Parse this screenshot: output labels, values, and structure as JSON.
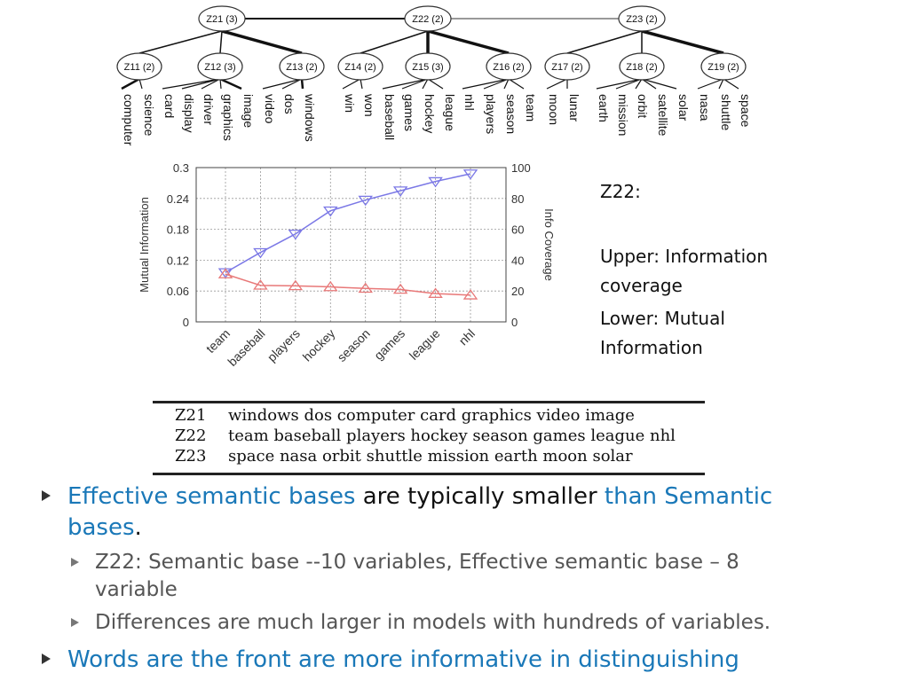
{
  "tree": {
    "top_nodes": [
      "Z21 (3)",
      "Z22 (2)",
      "Z23 (2)"
    ],
    "mid_nodes": [
      "Z11 (2)",
      "Z12 (3)",
      "Z13 (2)",
      "Z14 (2)",
      "Z15 (3)",
      "Z16 (2)",
      "Z17 (2)",
      "Z18 (2)",
      "Z19 (2)"
    ],
    "leaf_groups": [
      [
        "computer",
        "science"
      ],
      [
        "card",
        "display",
        "driver",
        "graphics",
        "image"
      ],
      [
        "video",
        "dos",
        "windows"
      ],
      [
        "win",
        "won"
      ],
      [
        "baseball",
        "games",
        "hockey",
        "league"
      ],
      [
        "nhl",
        "players",
        "season",
        "team"
      ],
      [
        "moon",
        "lunar"
      ],
      [
        "earth",
        "mission",
        "orbit",
        "satellite",
        "solar"
      ],
      [
        "nasa",
        "shuttle",
        "space"
      ]
    ]
  },
  "chart_data": {
    "type": "line",
    "categories": [
      "team",
      "baseball",
      "players",
      "hockey",
      "season",
      "games",
      "league",
      "nhl"
    ],
    "series": [
      {
        "values": [
          32,
          45,
          57,
          72,
          79,
          85,
          91,
          96
        ],
        "color": "#7b78e6",
        "marker": "triangle-down",
        "axis": "right"
      },
      {
        "values": [
          0.093,
          0.071,
          0.07,
          0.068,
          0.065,
          0.063,
          0.055,
          0.052
        ],
        "color": "#e87878",
        "marker": "triangle-up",
        "axis": "left"
      }
    ],
    "ylabel_left": "Mutual Information",
    "ylabel_right": "Info Coverage",
    "ylim_left": [
      0,
      0.3
    ],
    "yticks_left": [
      "0",
      "0.06",
      "0.12",
      "0.18",
      "0.24",
      "0.3"
    ],
    "ylim_right": [
      0,
      100
    ],
    "yticks_right": [
      "0",
      "20",
      "40",
      "60",
      "80",
      "100"
    ],
    "grid": true
  },
  "legend": {
    "title": "Z22:",
    "upper": "Upper: Information coverage",
    "lower": "Lower: Mutual Information"
  },
  "table": {
    "rows": [
      {
        "topic": "Z21",
        "words": "windows dos computer card graphics video image"
      },
      {
        "topic": "Z22",
        "words": "team baseball players hockey season games league nhl"
      },
      {
        "topic": "Z23",
        "words": "space nasa orbit shuttle mission earth moon solar"
      }
    ]
  },
  "bullets": {
    "b1_part1": "Effective semantic bases",
    "b1_part2": " are typically smaller ",
    "b1_part3": "than Semantic bases",
    "b1_part4": ".",
    "b1a": "Z22: Semantic base  --10 variables, Effective semantic base – 8 variable",
    "b1b": "Differences are much larger in models with hundreds of variables.",
    "b2": "Words are the front are more informative in distinguishing"
  },
  "colors": {
    "accent": "#1a78b8",
    "coverage_line": "#7b78e6",
    "mi_line": "#e87878"
  }
}
